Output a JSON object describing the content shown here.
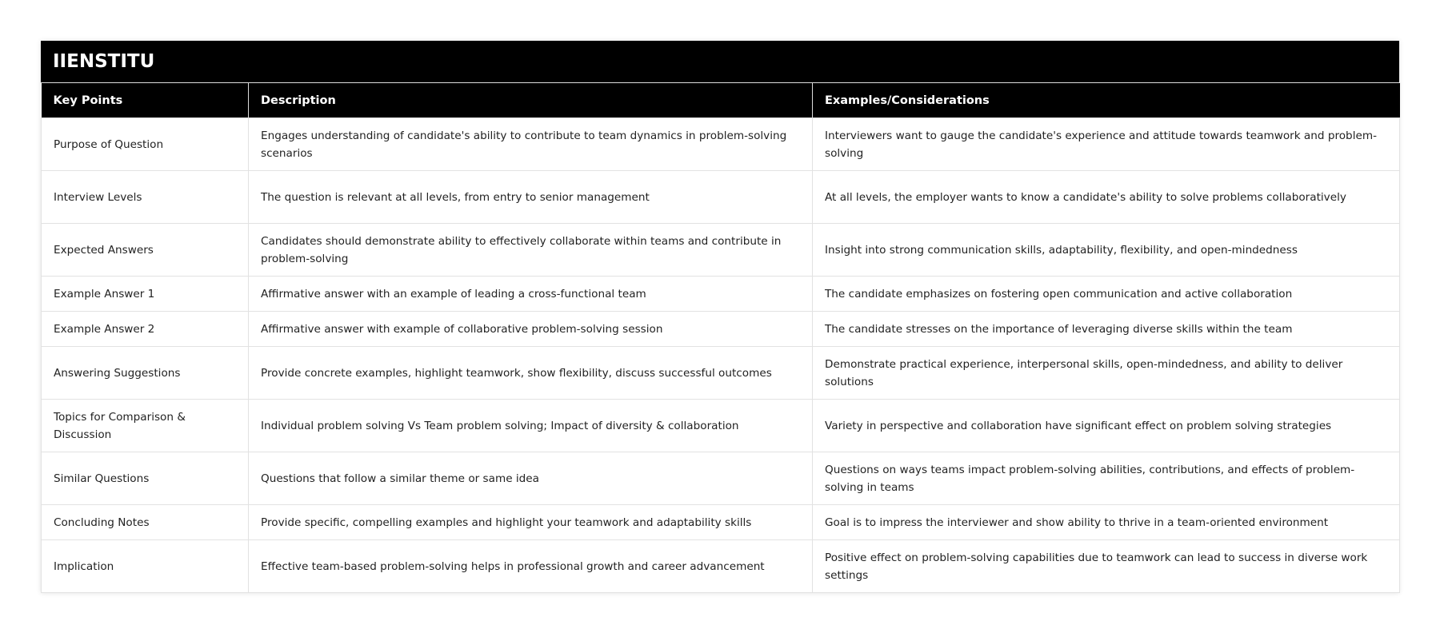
{
  "title": "IIENSTITU",
  "columns": [
    "Key Points",
    "Description",
    "Examples/Considerations"
  ],
  "rows": [
    [
      "Purpose of Question",
      "Engages understanding of candidate's ability to contribute to team dynamics in problem-solving scenarios",
      "Interviewers want to gauge the candidate's experience and attitude towards teamwork and problem-solving"
    ],
    [
      "Interview Levels",
      "The question is relevant at all levels, from entry to senior management",
      "At all levels, the employer wants to know a candidate's ability to solve problems collaboratively"
    ],
    [
      "Expected Answers",
      "Candidates should demonstrate ability to effectively collaborate within teams and contribute in problem-solving",
      "Insight into strong communication skills, adaptability, flexibility, and open-mindedness"
    ],
    [
      "Example Answer 1",
      "Affirmative answer with an example of leading a cross-functional team",
      "The candidate emphasizes on fostering open communication and active collaboration"
    ],
    [
      "Example Answer 2",
      "Affirmative answer with example of collaborative problem-solving session",
      "The candidate stresses on the importance of leveraging diverse skills within the team"
    ],
    [
      "Answering Suggestions",
      "Provide concrete examples, highlight teamwork, show flexibility, discuss successful outcomes",
      "Demonstrate practical experience, interpersonal skills, open-mindedness, and ability to deliver solutions"
    ],
    [
      "Topics for Comparison & Discussion",
      "Individual problem solving Vs Team problem solving; Impact of diversity & collaboration",
      "Variety in perspective and collaboration have significant effect on problem solving strategies"
    ],
    [
      "Similar Questions",
      "Questions that follow a similar theme or same idea",
      "Questions on ways teams impact problem-solving abilities, contributions, and effects of problem-solving in teams"
    ],
    [
      "Concluding Notes",
      "Provide specific, compelling examples and highlight your teamwork and adaptability skills",
      "Goal is to impress the interviewer and show ability to thrive in a team-oriented environment"
    ],
    [
      "Implication",
      "Effective team-based problem-solving helps in professional growth and career advancement",
      "Positive effect on problem-solving capabilities due to teamwork can lead to success in diverse work settings"
    ]
  ]
}
